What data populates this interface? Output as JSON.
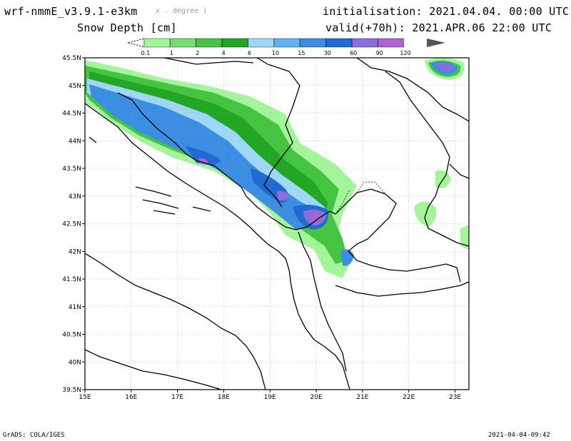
{
  "header": {
    "model": "wrf-nmmE_v3.9.1-e3km",
    "unit_note": "x . degree )",
    "field": "Snow Depth [cm]",
    "init": "initialisation: 2021.04.04.  00:00 UTC",
    "valid": "valid(+70h): 2021.APR.06 22:00 UTC"
  },
  "colorbar": {
    "labels": [
      "0.1",
      "1",
      "2",
      "4",
      "6",
      "10",
      "15",
      "30",
      "60",
      "90",
      "120"
    ],
    "colors": [
      "#a4f59a",
      "#77dd6e",
      "#44c441",
      "#22a623",
      "#9fd7f7",
      "#5fb3f0",
      "#3b8ee2",
      "#1f6bd2",
      "#8a6fdc",
      "#b063d3",
      "#555555"
    ]
  },
  "map": {
    "lat_labels": [
      "45.5N",
      "45N",
      "44.5N",
      "44N",
      "43.5N",
      "43N",
      "42.5N",
      "42N",
      "41.5N",
      "41N",
      "40.5N",
      "40N",
      "39.5N"
    ],
    "lon_labels": [
      "15E",
      "16E",
      "17E",
      "18E",
      "19E",
      "20E",
      "21E",
      "22E",
      "23E"
    ],
    "lat_range": [
      39.5,
      45.5
    ],
    "lon_range": [
      15.0,
      23.3
    ],
    "grid": "dotted"
  },
  "footer": {
    "left": "GrADS: COLA/IGES",
    "right": "2021-04-04-09:42"
  }
}
